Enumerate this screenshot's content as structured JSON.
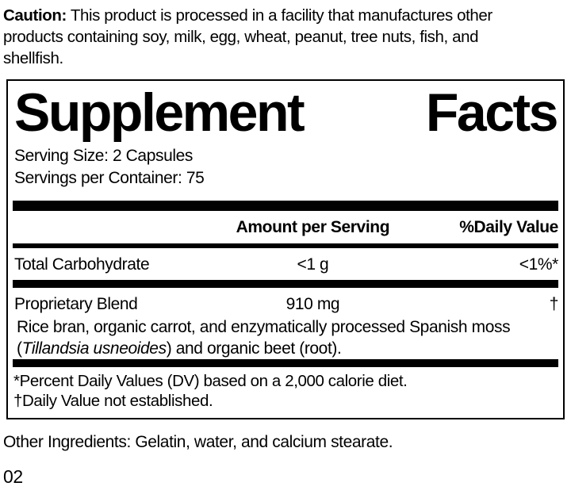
{
  "caution": {
    "label": "Caution:",
    "line1_rest": " This product is processed in a facility that manufactures other",
    "line2": "products containing soy, milk, egg, wheat, peanut, tree nuts, fish, and",
    "line3": "shellfish."
  },
  "panel": {
    "title_word1": "Supplement",
    "title_word2": "Facts",
    "serving_size": "Serving Size: 2 Capsules",
    "servings_per_container": "Servings per Container: 75",
    "columns": {
      "amount": "Amount per Serving",
      "daily_value": "%Daily Value"
    },
    "rows": [
      {
        "name": "Total Carbohydrate",
        "amount": "<1 g",
        "dv": "<1%*"
      },
      {
        "name": "Proprietary Blend",
        "amount": "910 mg",
        "dv": "†"
      }
    ],
    "blend_description": {
      "line1": "Rice bran, organic carrot, and enzymatically processed Spanish moss",
      "line2_pre": "(",
      "line2_italic": "Tillandsia usneoides",
      "line2_post": ") and organic beet (root)."
    },
    "footnotes": [
      "*Percent Daily Values (DV) based on a 2,000 calorie diet.",
      "†Daily Value not established."
    ]
  },
  "other_ingredients": "Other Ingredients: Gelatin, water, and calcium stearate.",
  "page_code": "02",
  "colors": {
    "ink": "#000000",
    "background": "#ffffff"
  }
}
